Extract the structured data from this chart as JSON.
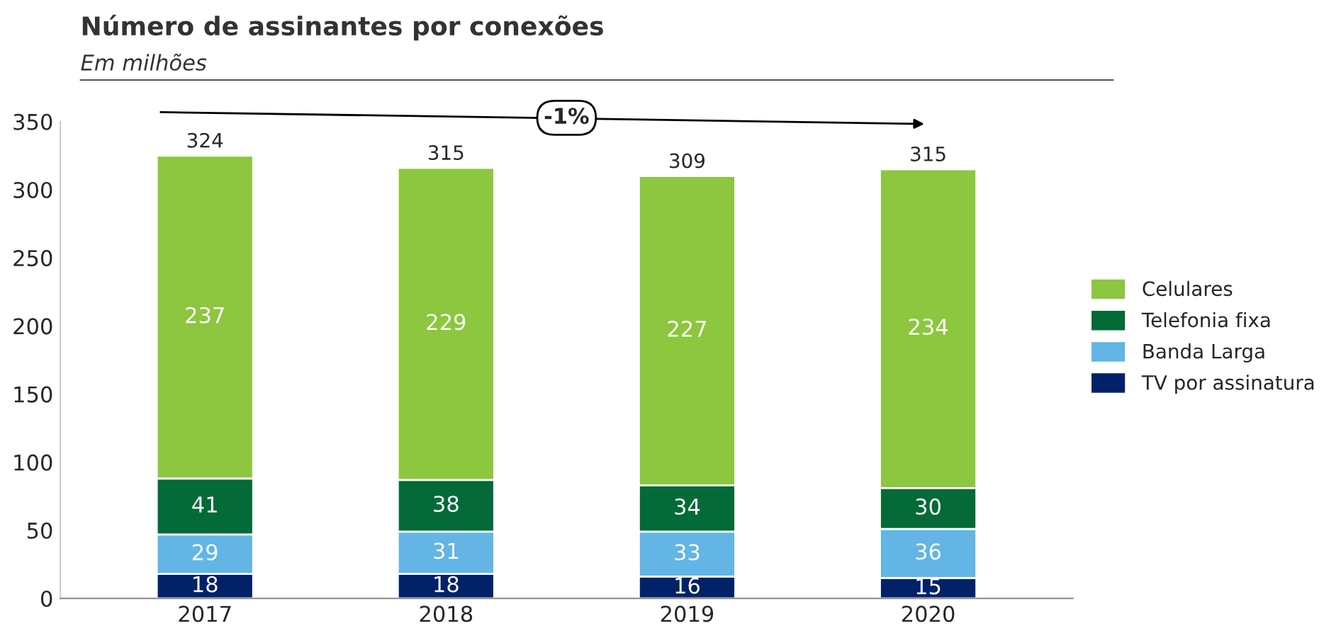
{
  "chart_data": {
    "type": "bar",
    "title": "Número de assinantes por conexões",
    "subtitle": "Em milhões",
    "categories": [
      "2017",
      "2018",
      "2019",
      "2020"
    ],
    "series": [
      {
        "name": "TV por assinatura",
        "color": "#012169",
        "values": [
          18,
          18,
          16,
          15
        ]
      },
      {
        "name": "Banda Larga",
        "color": "#62b5e5",
        "values": [
          29,
          31,
          33,
          36
        ]
      },
      {
        "name": "Telefonia fixa",
        "color": "#046a38",
        "values": [
          41,
          38,
          34,
          30
        ]
      },
      {
        "name": "Celulares",
        "color": "#8dc63f",
        "values": [
          237,
          229,
          227,
          234
        ]
      }
    ],
    "stacked": true,
    "data_labels": true,
    "totals": [
      "324",
      "315",
      "309",
      "315"
    ],
    "ylim": [
      0,
      350
    ],
    "yticks": [
      0,
      50,
      100,
      150,
      200,
      250,
      300,
      350
    ],
    "annotations": [
      "-1%"
    ],
    "legend": "right",
    "grid": false
  }
}
